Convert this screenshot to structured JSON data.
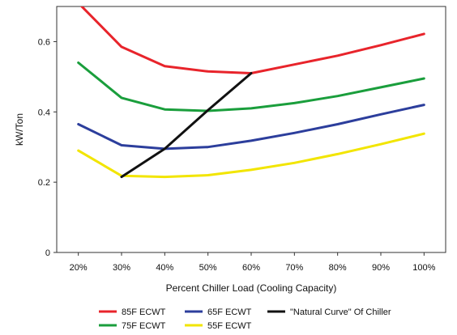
{
  "chart_data": {
    "type": "line",
    "title": "",
    "xlabel": "Percent Chiller Load (Cooling Capacity)",
    "ylabel": "kW/Ton",
    "x_categories": [
      "20%",
      "30%",
      "40%",
      "50%",
      "60%",
      "70%",
      "80%",
      "90%",
      "100%"
    ],
    "x_values": [
      20,
      30,
      40,
      50,
      60,
      70,
      80,
      90,
      100
    ],
    "xlim": [
      15,
      105
    ],
    "ylim": [
      0,
      0.7
    ],
    "y_ticks": [
      0,
      0.2,
      0.4,
      0.6
    ],
    "y_tick_labels": [
      "0",
      "0.2",
      "0.4",
      "0.6"
    ],
    "grid": false,
    "legend_position": "bottom",
    "series": [
      {
        "name": "85F ECWT",
        "color": "#e8242b",
        "x": [
          20,
          30,
          40,
          50,
          60,
          70,
          80,
          90,
          100
        ],
        "y": [
          0.71,
          0.585,
          0.53,
          0.515,
          0.51,
          0.535,
          0.56,
          0.59,
          0.622
        ]
      },
      {
        "name": "75F ECWT",
        "color": "#1a9e3c",
        "x": [
          20,
          30,
          40,
          50,
          60,
          70,
          80,
          90,
          100
        ],
        "y": [
          0.54,
          0.44,
          0.407,
          0.403,
          0.41,
          0.425,
          0.445,
          0.47,
          0.495
        ]
      },
      {
        "name": "65F ECWT",
        "color": "#2c3e9c",
        "x": [
          20,
          30,
          40,
          50,
          60,
          70,
          80,
          90,
          100
        ],
        "y": [
          0.365,
          0.305,
          0.295,
          0.3,
          0.318,
          0.34,
          0.365,
          0.393,
          0.42
        ]
      },
      {
        "name": "55F ECWT",
        "color": "#f2e500",
        "x": [
          20,
          30,
          40,
          50,
          60,
          70,
          80,
          90,
          100
        ],
        "y": [
          0.29,
          0.218,
          0.215,
          0.22,
          0.235,
          0.255,
          0.28,
          0.308,
          0.338
        ]
      },
      {
        "name": "\"Natural Curve\" Of Chiller",
        "color": "#111111",
        "x": [
          30,
          40,
          50,
          60
        ],
        "y": [
          0.215,
          0.295,
          0.405,
          0.51
        ]
      }
    ],
    "legend_rows": [
      [
        "85F ECWT",
        "65F ECWT",
        "\"Natural Curve\" Of Chiller"
      ],
      [
        "75F ECWT",
        "55F ECWT"
      ]
    ]
  }
}
